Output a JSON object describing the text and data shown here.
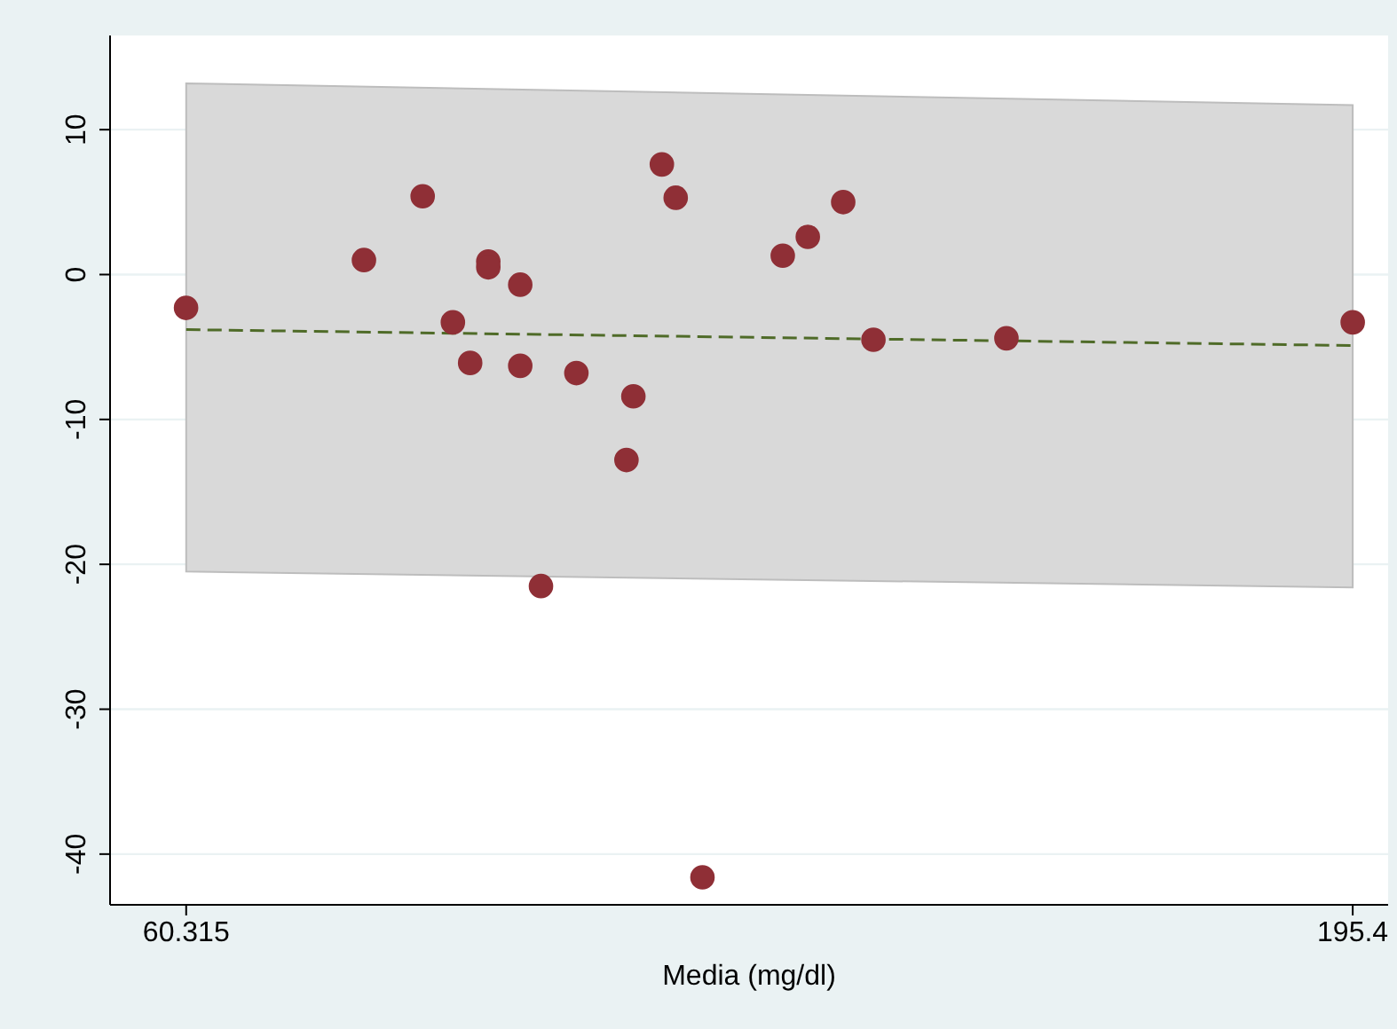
{
  "chart_data": {
    "type": "scatter",
    "xlabel": "Media (mg/dl)",
    "xlim": [
      51.5,
      199.5
    ],
    "xticks": [
      60.315,
      195.4
    ],
    "ylim": [
      -43.5,
      16.5
    ],
    "yticks": [
      10,
      0,
      -10,
      -20,
      -30,
      -40
    ],
    "grid": "y",
    "marker": "circle",
    "series": [
      {
        "type": "line",
        "color": "#4f6b28",
        "line_style": "dashed",
        "marker": "none",
        "x": [
          60.315,
          195.4
        ],
        "values": [
          -3.8,
          -4.9
        ],
        "lower": [
          -20.5,
          -21.6
        ],
        "upper": [
          13.2,
          11.7
        ]
      },
      {
        "color": "#8f2f36",
        "x": [
          60.3,
          80.9,
          87.7,
          91.2,
          93.2,
          95.3,
          95.3,
          99.0,
          99.0,
          101.4,
          105.5,
          111.3,
          112.1,
          115.4,
          117.0,
          120.1,
          129.4,
          132.3,
          136.4,
          139.9,
          155.3,
          195.4
        ],
        "values": [
          -2.3,
          1.0,
          5.4,
          -3.3,
          -6.1,
          0.9,
          0.5,
          -0.7,
          -6.3,
          -21.5,
          -6.8,
          -12.8,
          -8.4,
          7.6,
          5.3,
          -41.6,
          1.3,
          2.6,
          5.0,
          -4.5,
          -4.4,
          -3.3
        ]
      }
    ]
  }
}
